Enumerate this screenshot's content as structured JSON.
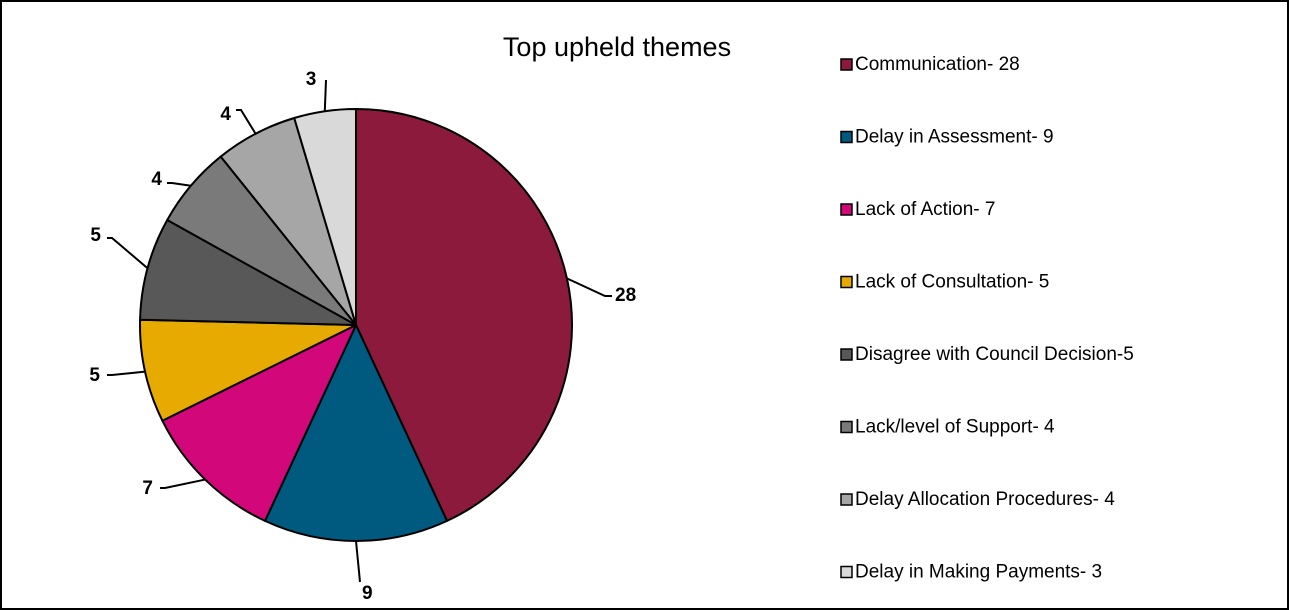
{
  "chart_data": {
    "type": "pie",
    "title": "Top upheld themes",
    "slices": [
      {
        "label": "Communication- 28",
        "value": 28,
        "color": "#8c1a3c"
      },
      {
        "label": "Delay in Assessment- 9",
        "value": 9,
        "color": "#005a80"
      },
      {
        "label": "Lack of Action- 7",
        "value": 7,
        "color": "#d1077a"
      },
      {
        "label": "Lack of Consultation- 5",
        "value": 5,
        "color": "#e6aa00"
      },
      {
        "label": "Disagree with Council Decision-5",
        "value": 5,
        "color": "#585858"
      },
      {
        "label": "Lack/level of Support- 4",
        "value": 4,
        "color": "#7a7a7a"
      },
      {
        "label": "Delay Allocation Procedures- 4",
        "value": 4,
        "color": "#a6a6a6"
      },
      {
        "label": "Delay in Making Payments- 3",
        "value": 3,
        "color": "#d9d9d9"
      }
    ],
    "data_labels": [
      "28",
      "9",
      "7",
      "5",
      "5",
      "4",
      "4",
      "3"
    ],
    "legend_position": "right",
    "start_angle": "12 o'clock",
    "direction": "clockwise"
  }
}
